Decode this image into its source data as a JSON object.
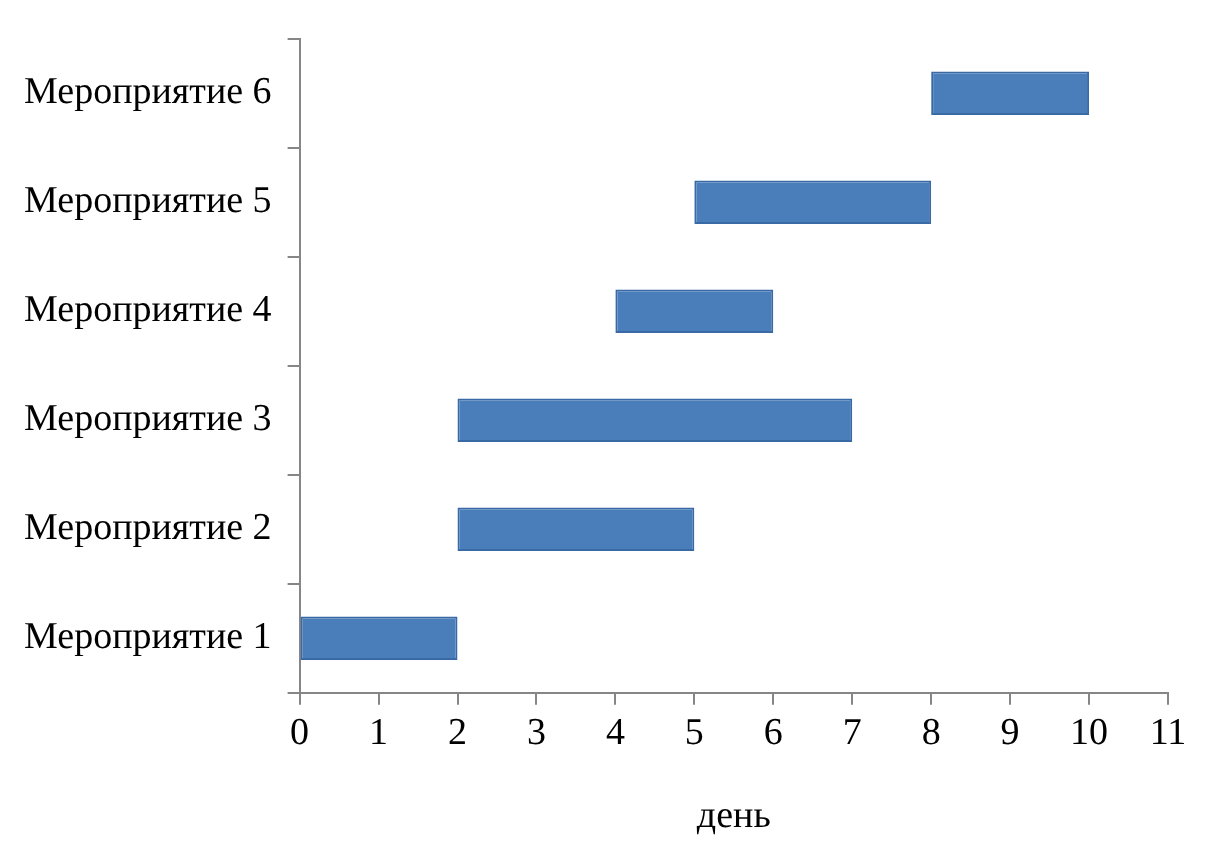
{
  "chart_data": {
    "type": "bar",
    "orientation": "horizontal",
    "categories": [
      "Мероприятие 6",
      "Мероприятие 5",
      "Мероприятие 4",
      "Мероприятие 3",
      "Мероприятие 2",
      "Мероприятие 1"
    ],
    "base": [
      8,
      5,
      4,
      2,
      2,
      0
    ],
    "values": [
      2,
      3,
      2,
      5,
      3,
      2
    ],
    "color": "#4a7ebb",
    "xlim": [
      0,
      11
    ],
    "xticks": [
      0,
      1,
      2,
      3,
      4,
      5,
      6,
      7,
      8,
      9,
      10,
      11
    ],
    "xlabel": "день",
    "grid": false
  }
}
